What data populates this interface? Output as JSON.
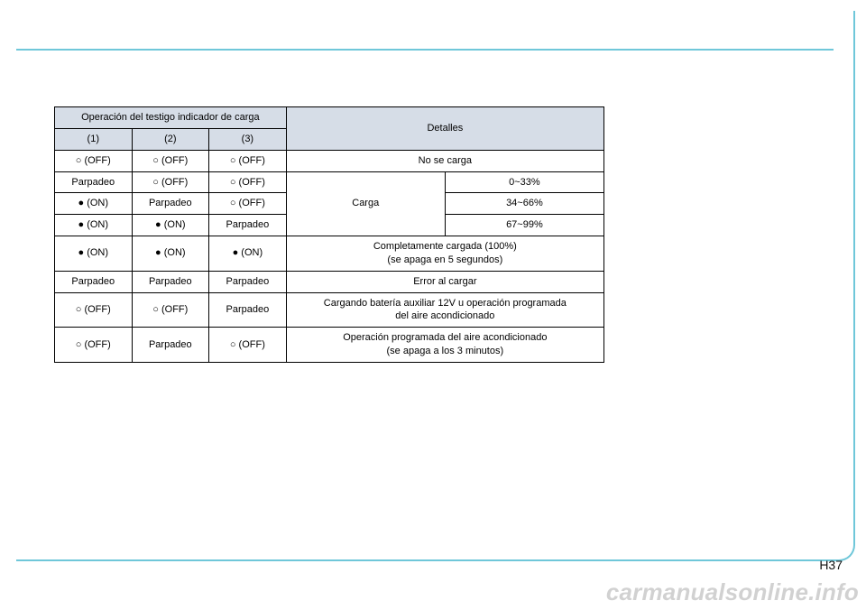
{
  "page": {
    "number": "H37",
    "watermark": "carmanualsonline.info"
  },
  "colors": {
    "frame_border": "#6fc7d9",
    "table_border": "#000000",
    "header_bg": "#d6dde7",
    "cell_bg": "#ffffff",
    "watermark": "rgba(0,0,0,0.18)"
  },
  "symbols": {
    "off": "○",
    "on": "●"
  },
  "table": {
    "header": {
      "operation": "Operación del testigo indicador de carga",
      "col1": "(1)",
      "col2": "(2)",
      "col3": "(3)",
      "details": "Detalles"
    },
    "rows": [
      {
        "c1": "○ (OFF)",
        "c2": "○ (OFF)",
        "c3": "○ (OFF)",
        "d": "No se carga"
      },
      {
        "c1": "Parpadeo",
        "c2": "○ (OFF)",
        "c3": "○ (OFF)",
        "d_group": "Carga",
        "d2": "0~33%"
      },
      {
        "c1": "● (ON)",
        "c2": "Parpadeo",
        "c3": "○ (OFF)",
        "d2": "34~66%"
      },
      {
        "c1": "● (ON)",
        "c2": "● (ON)",
        "c3": "Parpadeo",
        "d2": "67~99%"
      },
      {
        "c1": "● (ON)",
        "c2": "● (ON)",
        "c3": "● (ON)",
        "d": "Completamente cargada (100%)\n(se apaga en 5 segundos)"
      },
      {
        "c1": "Parpadeo",
        "c2": "Parpadeo",
        "c3": "Parpadeo",
        "d": "Error al cargar"
      },
      {
        "c1": "○ (OFF)",
        "c2": "○ (OFF)",
        "c3": "Parpadeo",
        "d": "Cargando batería auxiliar 12V u operación programada\ndel aire acondicionado"
      },
      {
        "c1": "○ (OFF)",
        "c2": "Parpadeo",
        "c3": "○ (OFF)",
        "d": "Operación programada del aire acondicionado\n(se apaga a los 3 minutos)"
      }
    ],
    "font_size_pt": 11
  }
}
